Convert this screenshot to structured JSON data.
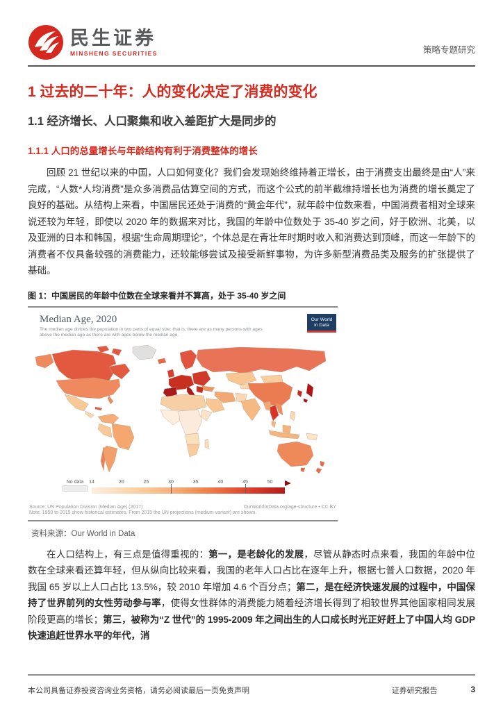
{
  "header": {
    "brand_cn": "民生证券",
    "brand_en": "MINSHENG SECURITIES",
    "doc_type": "策略专题研究"
  },
  "headings": {
    "h1": "1 过去的二十年：人的变化决定了消费的变化",
    "h2": "1.1 经济增长、人口聚集和收入差距扩大是同步的",
    "h3": "1.1.1 人口的总量增长与年龄结构有利于消费整体的增长"
  },
  "paragraphs": {
    "p1": [
      {
        "t": "回顾 21 世纪以来的中国，人口如何变化？我们会发现始终维持着正增长，由于消费支出最终是由“人”来完成，“人数*人均消费”是众多消费品估算空间的方式，而这个公式的前半截维持增长也为消费的增长奠定了良好的基础。从结构上来看，中国居民还处于消费的“黄金年代”，就年龄中位数来看，中国消费者相对全球来说还较为年轻，即使以 2020 年的数据来对比，我国的年龄中位数处于 35-40 岁之间，好于欧洲、北美，以及亚洲的日本和韩国，根据“生命周期理论”，个体总是在青壮年时期时收入和消费达到顶峰，而这一年龄下的消费者不仅具备较强的消费能力，还较能够尝试及接受新鲜事物，为许多新型消费品类及服务的扩张提供了基础。",
        "b": false
      }
    ],
    "p2": [
      {
        "t": "在人口结构上，有三点是值得重视的：",
        "b": false
      },
      {
        "t": "第一，是老龄化的发展",
        "b": true
      },
      {
        "t": "，尽管从静态时点来看，我国的年龄中位数在全球来看还算年轻，但从纵向比较来看，我国的老年人口占比在逐年上升，根据七普人口数据，2020 年我国 65 岁以上人口占比 13.5%，较 2010 年增加 4.6 个百分点；",
        "b": false
      },
      {
        "t": "第二，是在经济快速发展的过程中，中国保持了世界前列的女性劳动参与率",
        "b": true
      },
      {
        "t": "，使得女性群体的消费能力随着经济增长得到了相较世界其他国家相同发展阶段更高的增长；",
        "b": false
      },
      {
        "t": "第三，被称为“Z 世代”的 1995-2009 年之间出生的人口成长时光正好赶上了中国人均 GDP 快速追赶世界水平的年代，消",
        "b": true
      }
    ]
  },
  "figure": {
    "caption": "图 1：中国居民的年龄中位数在全球来看并不算高，处于 35-40 岁之间",
    "source_label": "资料来源：Our World in Data"
  },
  "chart_data": {
    "type": "heatmap",
    "subtype": "choropleth-world-map",
    "title": "Median Age, 2020",
    "subtitle": "The median age divides the population in two parts of equal size: that is, there are as many persons with ages above the median age as there are with ages below the median age.",
    "logo_line1": "Our World",
    "logo_line2": "in Data",
    "legend": {
      "no_data_label": "No data",
      "ticks": [
        14,
        20,
        25,
        30,
        35,
        40,
        45,
        50
      ],
      "tick_marks": [
        30,
        45
      ],
      "range_min": 14,
      "range_max": 53,
      "colors": [
        "#fdeedd",
        "#fbdcbb",
        "#f9c897",
        "#f5ad77",
        "#f0894f",
        "#e65e3b",
        "#d63727",
        "#b11c1a"
      ],
      "arrow_color": "#8a0f12",
      "no_data_color": "#ececec"
    },
    "source_left": "Source: UN Population Division (Median Age) (2017)",
    "source_right": "OurWorldInData.org/age-structure • CC BY",
    "note": "Note: 1950 to 2015 show historical estimates. From 2015 the UN projections (medium variant) are shown.",
    "regions": [
      {
        "id": "greenland",
        "median_age": null,
        "color": "#e0e0e0"
      },
      {
        "id": "canada",
        "median_age": 41,
        "color": "#e25940"
      },
      {
        "id": "alaska",
        "median_age": 38,
        "color": "#ee8a5e"
      },
      {
        "id": "usa",
        "median_age": 38,
        "color": "#ee8a5e"
      },
      {
        "id": "mexico",
        "median_age": 29,
        "color": "#f9c897"
      },
      {
        "id": "central-america",
        "median_age": 27,
        "color": "#fbd7b0"
      },
      {
        "id": "caribbean",
        "median_age": 41,
        "color": "#e25940"
      },
      {
        "id": "colombia-venezuela",
        "median_age": 30,
        "color": "#f5ad77"
      },
      {
        "id": "brazil",
        "median_age": 33,
        "color": "#f4a76f"
      },
      {
        "id": "peru-bolivia",
        "median_age": 29,
        "color": "#f9c897"
      },
      {
        "id": "argentina",
        "median_age": 32,
        "color": "#f2a069"
      },
      {
        "id": "chile",
        "median_age": 35,
        "color": "#ec7f53"
      },
      {
        "id": "iceland",
        "median_age": 37,
        "color": "#e8684a"
      },
      {
        "id": "uk-ireland",
        "median_age": 40,
        "color": "#d6402e"
      },
      {
        "id": "scandinavia",
        "median_age": 40,
        "color": "#e05440"
      },
      {
        "id": "western-europe",
        "median_age": 42,
        "color": "#c7301f"
      },
      {
        "id": "spain-portugal",
        "median_age": 45,
        "color": "#ab1a1b"
      },
      {
        "id": "italy",
        "median_age": 47,
        "color": "#ab1a1b"
      },
      {
        "id": "eastern-europe",
        "median_age": 41,
        "color": "#cf3a2a"
      },
      {
        "id": "balkans",
        "median_age": 43,
        "color": "#c7301f"
      },
      {
        "id": "russia",
        "median_age": 39,
        "color": "#e97356"
      },
      {
        "id": "kazakhstan",
        "median_age": 30,
        "color": "#f8c693"
      },
      {
        "id": "central-asia",
        "median_age": 27,
        "color": "#fbd8b3"
      },
      {
        "id": "mongolia",
        "median_age": 28,
        "color": "#f9cd9e"
      },
      {
        "id": "china",
        "median_age": 38,
        "color": "#eb7c51"
      },
      {
        "id": "japan",
        "median_age": 48,
        "color": "#ae151a"
      },
      {
        "id": "south-korea",
        "median_age": 43,
        "color": "#c42b22"
      },
      {
        "id": "turkey",
        "median_age": 31,
        "color": "#f0935f"
      },
      {
        "id": "middle-east",
        "median_age": 30,
        "color": "#f8c693"
      },
      {
        "id": "iran-iraq",
        "median_age": 32,
        "color": "#f3a873"
      },
      {
        "id": "afghanistan-pakistan",
        "median_age": 20,
        "color": "#fbd8b3"
      },
      {
        "id": "india",
        "median_age": 28,
        "color": "#f6b983"
      },
      {
        "id": "north-africa",
        "median_age": 28,
        "color": "#f7cfa4"
      },
      {
        "id": "west-africa",
        "median_age": 18,
        "color": "#fdeedd"
      },
      {
        "id": "central-africa",
        "median_age": 17,
        "color": "#fceadc"
      },
      {
        "id": "horn-of-africa",
        "median_age": 19,
        "color": "#fbe3c8"
      },
      {
        "id": "southern-africa",
        "median_age": 24,
        "color": "#fbe0bd"
      },
      {
        "id": "south-africa",
        "median_age": 27,
        "color": "#f9cc9c"
      },
      {
        "id": "madagascar",
        "median_age": 19,
        "color": "#fbdcbb"
      },
      {
        "id": "myanmar",
        "median_age": 29,
        "color": "#f3a873"
      },
      {
        "id": "thailand",
        "median_age": 40,
        "color": "#d93426"
      },
      {
        "id": "vietnam",
        "median_age": 32,
        "color": "#ef8c58"
      },
      {
        "id": "malaysia-indonesia",
        "median_age": 29,
        "color": "#f5b47c"
      },
      {
        "id": "philippines",
        "median_age": 25,
        "color": "#fbd8b3"
      },
      {
        "id": "papua-new-guinea",
        "median_age": 22,
        "color": "#fce4c9"
      },
      {
        "id": "australia",
        "median_age": 37,
        "color": "#ee8a5a"
      },
      {
        "id": "tasmania",
        "median_age": 37,
        "color": "#e8684a"
      },
      {
        "id": "new-zealand",
        "median_age": 37,
        "color": "#e8684a"
      }
    ]
  },
  "footer": {
    "disclaimer": "本公司具备证券投资咨询业务资格，请务必阅读最后一页免责声明",
    "doc_label": "证券研究报告",
    "page_number": "3"
  }
}
